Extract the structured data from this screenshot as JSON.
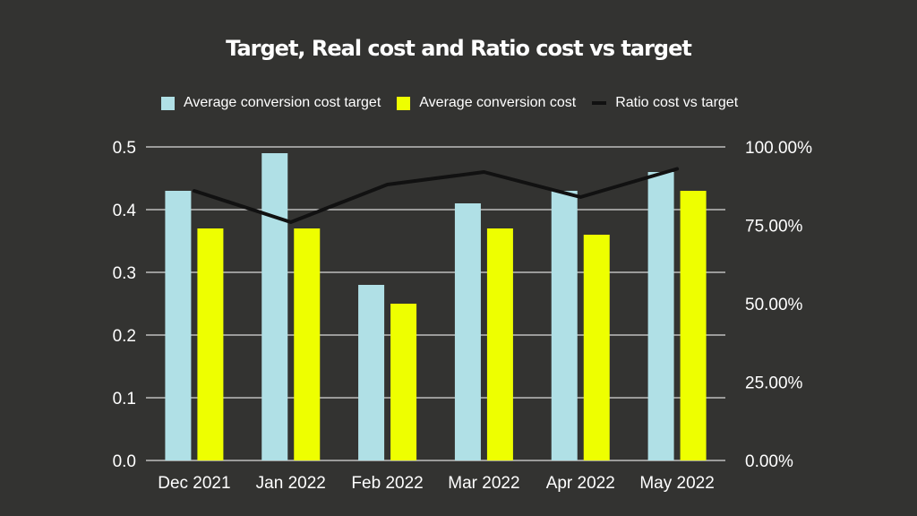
{
  "chart_data": {
    "type": "bar",
    "title": "Target, Real cost and Ratio cost vs target",
    "categories": [
      "Dec 2021",
      "Jan 2022",
      "Feb 2022",
      "Mar 2022",
      "Apr 2022",
      "May 2022"
    ],
    "series": [
      {
        "name": "Average conversion cost target",
        "type": "bar",
        "axis": "left",
        "color": "#b0e0e6",
        "values": [
          0.43,
          0.49,
          0.28,
          0.41,
          0.43,
          0.46
        ]
      },
      {
        "name": "Average conversion cost",
        "type": "bar",
        "axis": "left",
        "color": "#eeff00",
        "values": [
          0.37,
          0.37,
          0.25,
          0.37,
          0.36,
          0.43
        ]
      },
      {
        "name": "Ratio cost vs target",
        "type": "line",
        "axis": "right",
        "color": "#111111",
        "values": [
          0.86,
          0.76,
          0.88,
          0.92,
          0.84,
          0.93
        ]
      }
    ],
    "y_left": {
      "ylim": [
        0,
        0.5
      ],
      "ticks": [
        0,
        0.1,
        0.2,
        0.3,
        0.4,
        0.5
      ],
      "tick_labels": [
        "0.0",
        "0.1",
        "0.2",
        "0.3",
        "0.4",
        "0.5"
      ]
    },
    "y_right": {
      "ylim": [
        0,
        1
      ],
      "ticks": [
        0,
        0.25,
        0.5,
        0.75,
        1
      ],
      "tick_labels": [
        "0.00%",
        "25.00%",
        "50.00%",
        "75.00%",
        "100.00%"
      ]
    },
    "grid": true,
    "legend_position": "top",
    "colors": {
      "background": "#333331",
      "grid": "#d9d9d9",
      "text": "#ffffff"
    }
  }
}
